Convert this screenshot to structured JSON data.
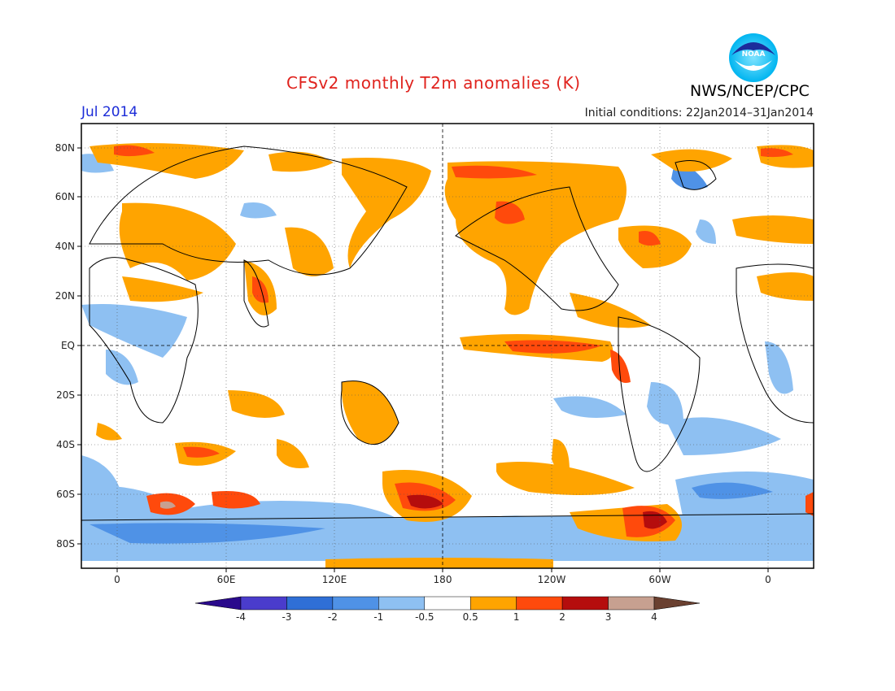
{
  "title": "CFSv2 monthly T2m anomalies (K)",
  "month": "Jul 2014",
  "initial_conditions": "Initial conditions: 22Jan2014–31Jan2014",
  "agency": "NWS/NCEP/CPC",
  "logo_text": "NOAA",
  "lat_labels": [
    "80N",
    "60N",
    "40N",
    "20N",
    "EQ",
    "20S",
    "40S",
    "60S",
    "80S"
  ],
  "lon_labels": [
    "0",
    "60E",
    "120E",
    "180",
    "120W",
    "60W",
    "0"
  ],
  "colorbar": {
    "labels": [
      "-4",
      "-3",
      "-2",
      "-1",
      "-0.5",
      "0.5",
      "1",
      "2",
      "3",
      "4"
    ],
    "colors": [
      "#2a0a8c",
      "#4a3ccc",
      "#2f6fd6",
      "#4f92e6",
      "#8ec0f2",
      "#ffffff",
      "#ffa400",
      "#ff4a0c",
      "#b50d0d",
      "#c7a090",
      "#6a4030"
    ]
  }
}
